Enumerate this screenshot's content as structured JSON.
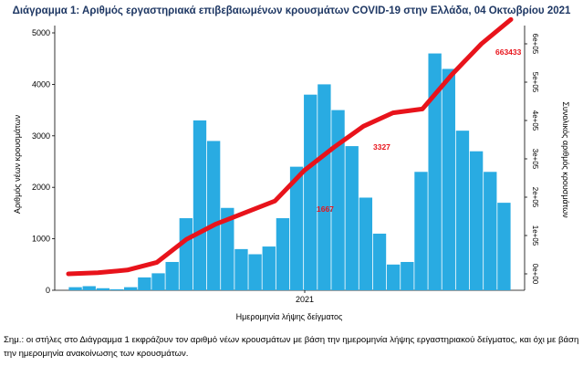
{
  "chart_data": {
    "type": "bar",
    "title": "Διάγραμμα 1: Αριθμός εργαστηριακά επιβεβαιωμένων κρουσμάτων COVID-19 στην Ελλάδα, 04 Οκτωβρίου 2021",
    "xlabel": "Ημερομηνία λήψης δείγματος",
    "ylabel": "Αριθμός νέων κρουσμάτων",
    "y2label": "Συνολικός αριθμός κρουσμάτων",
    "x_tick_labels": [
      "2021"
    ],
    "ylim": [
      0,
      5000
    ],
    "y_ticks": [
      0,
      1000,
      2000,
      3000,
      4000,
      5000
    ],
    "y2lim": [
      0,
      600000
    ],
    "y2_tick_labels": [
      "0e+00",
      "1e+05",
      "2e+05",
      "3e+05",
      "4e+05",
      "5e+05",
      "6e+05"
    ],
    "grid": false,
    "colors": {
      "bars": "#29abe2",
      "cumulative": "#e8131b",
      "title": "#1f3864"
    },
    "annotations": [
      "1667",
      "3327",
      "663433"
    ],
    "series": [
      {
        "kind": "bar",
        "x": [
          "2020-03",
          "2020-04",
          "2020-05",
          "2020-06",
          "2020-07",
          "2020-08",
          "2020-09",
          "2020-10",
          "2020-10b",
          "2020-11",
          "2020-11b",
          "2020-12",
          "2020-12b",
          "2021-01",
          "2021-01b",
          "2021-02",
          "2021-02b",
          "2021-03",
          "2021-03b",
          "2021-04",
          "2021-04b",
          "2021-05",
          "2021-05b",
          "2021-06",
          "2021-06b",
          "2021-07",
          "2021-07b",
          "2021-08",
          "2021-08b",
          "2021-09",
          "2021-09b",
          "2021-10"
        ],
        "values": [
          60,
          80,
          40,
          20,
          60,
          250,
          330,
          550,
          1400,
          3300,
          2900,
          1600,
          800,
          700,
          850,
          1400,
          2400,
          3800,
          4000,
          3500,
          2800,
          1800,
          1100,
          500,
          550,
          2300,
          4600,
          4300,
          3100,
          2700,
          2300,
          1700
        ]
      },
      {
        "kind": "line",
        "x": [
          "2020-03",
          "2020-06",
          "2020-09",
          "2020-10",
          "2020-11",
          "2020-12",
          "2021-01",
          "2021-02",
          "2021-03",
          "2021-04",
          "2021-05",
          "2021-06",
          "2021-07",
          "2021-08",
          "2021-09",
          "2021-10"
        ],
        "values": [
          0,
          3000,
          10000,
          30000,
          90000,
          130000,
          160000,
          190000,
          270000,
          330000,
          385000,
          420000,
          430000,
          520000,
          600000,
          663433
        ]
      }
    ]
  },
  "note": "Σημ.: οι στήλες στο Διάγραμμα 1 εκφράζουν τον αριθμό νέων κρουσμάτων με βάση την ημερομηνία λήψης εργαστηριακού δείγματος, και όχι με βάση την ημερομηνία ανακοίνωσης των κρουσμάτων."
}
